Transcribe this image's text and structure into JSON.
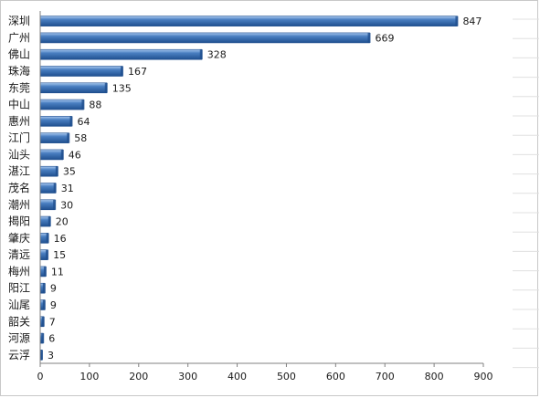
{
  "chart_data": {
    "type": "bar",
    "orientation": "horizontal",
    "title": "",
    "xlabel": "",
    "ylabel": "",
    "categories": [
      "深圳",
      "广州",
      "佛山",
      "珠海",
      "东莞",
      "中山",
      "惠州",
      "江门",
      "汕头",
      "湛江",
      "茂名",
      "潮州",
      "揭阳",
      "肇庆",
      "清远",
      "梅州",
      "阳江",
      "汕尾",
      "韶关",
      "河源",
      "云浮"
    ],
    "values": [
      847,
      669,
      328,
      167,
      135,
      88,
      64,
      58,
      46,
      35,
      31,
      30,
      20,
      16,
      15,
      11,
      9,
      9,
      7,
      6,
      3
    ],
    "xlim": [
      0,
      900
    ],
    "xticks": [
      0,
      100,
      200,
      300,
      400,
      500,
      600,
      700,
      800,
      900
    ],
    "bar_color": "#4a7fc1",
    "bar_dark": "#1f4f8f",
    "bar_light": "#a9c8ef",
    "grid": "horizontal lines at right margin",
    "legend": "none"
  }
}
